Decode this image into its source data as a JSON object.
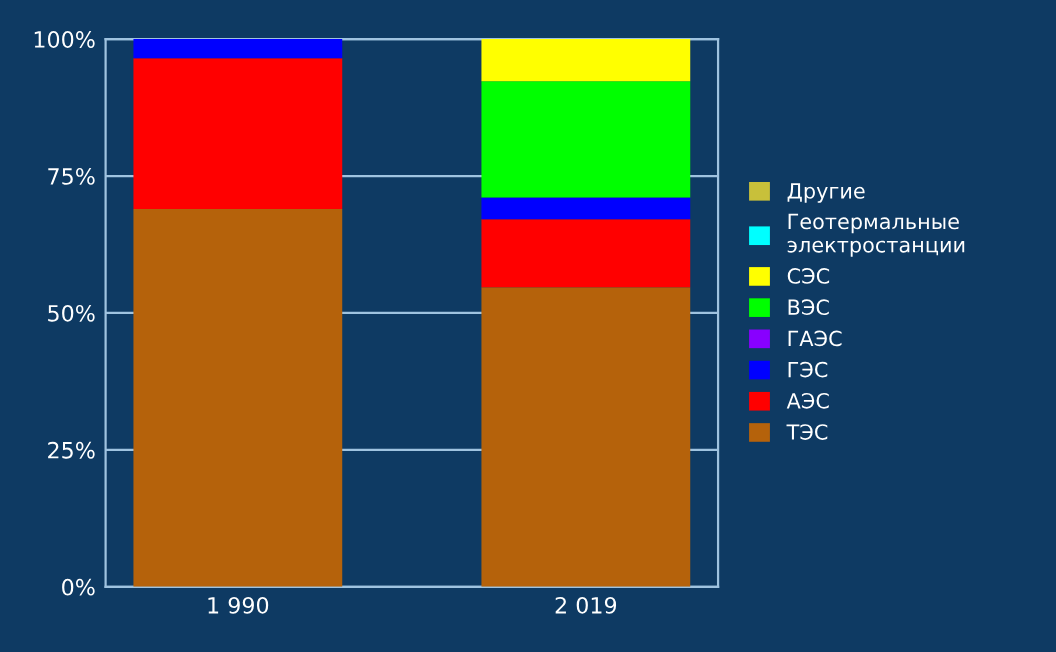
{
  "chart_data": {
    "type": "bar",
    "stacked": true,
    "categories": [
      "1 990",
      "2 019"
    ],
    "series": [
      {
        "name": "ТЭС",
        "color": "#b5620b",
        "values": [
          69,
          54.7
        ]
      },
      {
        "name": "АЭС",
        "color": "#ff0000",
        "values": [
          27.5,
          12.4
        ]
      },
      {
        "name": "ГЭС",
        "color": "#0000ff",
        "values": [
          3.5,
          4
        ]
      },
      {
        "name": "ГАЭС",
        "color": "#8800ff",
        "values": [
          0,
          0
        ]
      },
      {
        "name": "ВЭС",
        "color": "#00ff00",
        "values": [
          0,
          21.2
        ]
      },
      {
        "name": "СЭС",
        "color": "#ffff00",
        "values": [
          0,
          7.7
        ]
      },
      {
        "name": "Геотермальные\nэлектростанции",
        "color": "#00ffff",
        "values": [
          0,
          0
        ]
      },
      {
        "name": "Другие",
        "color": "#c8c03a",
        "values": [
          0,
          0
        ]
      }
    ],
    "ylim": [
      0,
      100
    ],
    "yticks": [
      {
        "value": 0,
        "label": "0%"
      },
      {
        "value": 25,
        "label": "25%"
      },
      {
        "value": 50,
        "label": "50%"
      },
      {
        "value": 75,
        "label": "75%"
      },
      {
        "value": 100,
        "label": "100%"
      }
    ],
    "grid": "y",
    "legend": "right"
  }
}
